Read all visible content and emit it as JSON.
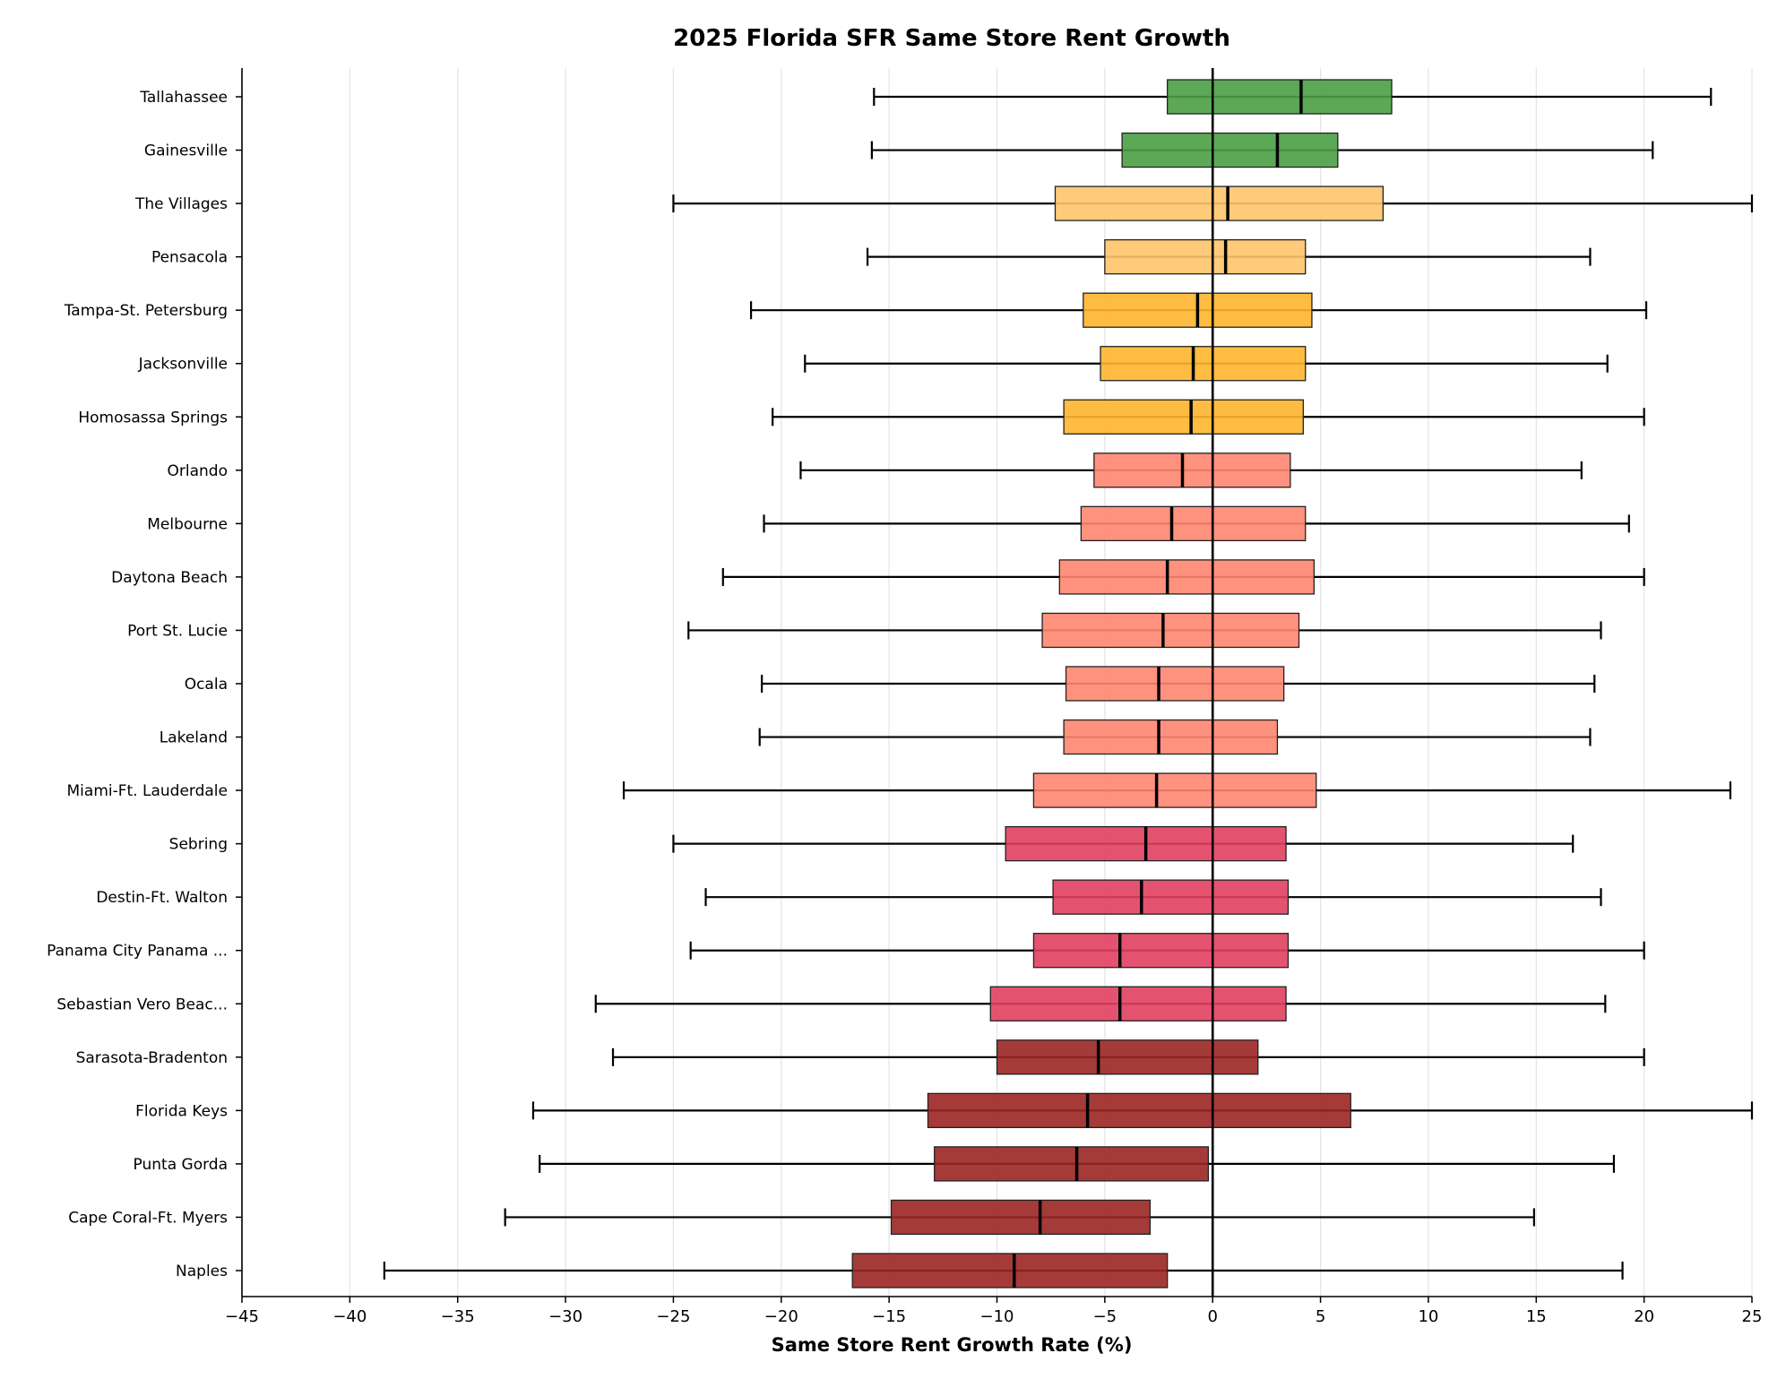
{
  "chart_data": {
    "type": "box",
    "orientation": "horizontal",
    "title": "2025 Florida SFR Same Store Rent Growth",
    "xlabel": "Same Store Rent Growth Rate (%)",
    "ylabel": "",
    "xlim": [
      -45,
      25
    ],
    "xticks": [
      -45,
      -40,
      -35,
      -30,
      -25,
      -20,
      -15,
      -10,
      -5,
      0,
      5,
      10,
      15,
      20,
      25
    ],
    "xtick_labels": [
      "−45",
      "−40",
      "−35",
      "−30",
      "−25",
      "−20",
      "−15",
      "−10",
      "−5",
      "0",
      "5",
      "10",
      "15",
      "20",
      "25"
    ],
    "grid": "vertical",
    "reference_line": 0,
    "categories": [
      {
        "name": "Tallahassee",
        "whisker_low": -15.7,
        "q1": -2.1,
        "median": 4.1,
        "q3": 8.3,
        "whisker_high": 23.1,
        "color": "#4a9e45"
      },
      {
        "name": "Gainesville",
        "whisker_low": -15.8,
        "q1": -4.2,
        "median": 3.0,
        "q3": 5.8,
        "whisker_high": 20.4,
        "color": "#4a9e45"
      },
      {
        "name": "The Villages",
        "whisker_low": -25.0,
        "q1": -7.3,
        "median": 0.7,
        "q3": 7.9,
        "whisker_high": 25.0,
        "color": "#ffc46c"
      },
      {
        "name": "Pensacola",
        "whisker_low": -16.0,
        "q1": -5.0,
        "median": 0.6,
        "q3": 4.3,
        "whisker_high": 17.5,
        "color": "#ffc46c"
      },
      {
        "name": "Tampa-St. Petersburg",
        "whisker_low": -21.4,
        "q1": -6.0,
        "median": -0.7,
        "q3": 4.6,
        "whisker_high": 20.1,
        "color": "#ffb52e"
      },
      {
        "name": "Jacksonville",
        "whisker_low": -18.9,
        "q1": -5.2,
        "median": -0.9,
        "q3": 4.3,
        "whisker_high": 18.3,
        "color": "#ffb52e"
      },
      {
        "name": "Homosassa Springs",
        "whisker_low": -20.4,
        "q1": -6.9,
        "median": -1.0,
        "q3": 4.2,
        "whisker_high": 20.0,
        "color": "#ffb52e"
      },
      {
        "name": "Orlando",
        "whisker_low": -19.1,
        "q1": -5.5,
        "median": -1.4,
        "q3": 3.6,
        "whisker_high": 17.1,
        "color": "#ff8670"
      },
      {
        "name": "Melbourne",
        "whisker_low": -20.8,
        "q1": -6.1,
        "median": -1.9,
        "q3": 4.3,
        "whisker_high": 19.3,
        "color": "#ff8670"
      },
      {
        "name": "Daytona Beach",
        "whisker_low": -22.7,
        "q1": -7.1,
        "median": -2.1,
        "q3": 4.7,
        "whisker_high": 20.0,
        "color": "#ff8670"
      },
      {
        "name": "Port St. Lucie",
        "whisker_low": -24.3,
        "q1": -7.9,
        "median": -2.3,
        "q3": 4.0,
        "whisker_high": 18.0,
        "color": "#ff8670"
      },
      {
        "name": "Ocala",
        "whisker_low": -20.9,
        "q1": -6.8,
        "median": -2.5,
        "q3": 3.3,
        "whisker_high": 17.7,
        "color": "#ff8670"
      },
      {
        "name": "Lakeland",
        "whisker_low": -21.0,
        "q1": -6.9,
        "median": -2.5,
        "q3": 3.0,
        "whisker_high": 17.5,
        "color": "#ff8670"
      },
      {
        "name": "Miami-Ft. Lauderdale",
        "whisker_low": -27.3,
        "q1": -8.3,
        "median": -2.6,
        "q3": 4.8,
        "whisker_high": 24.0,
        "color": "#ff8670"
      },
      {
        "name": "Sebring",
        "whisker_low": -25.0,
        "q1": -9.6,
        "median": -3.1,
        "q3": 3.4,
        "whisker_high": 16.7,
        "color": "#e0405f"
      },
      {
        "name": "Destin-Ft. Walton",
        "whisker_low": -23.5,
        "q1": -7.4,
        "median": -3.3,
        "q3": 3.5,
        "whisker_high": 18.0,
        "color": "#e0405f"
      },
      {
        "name": "Panama City Panama ...",
        "whisker_low": -24.2,
        "q1": -8.3,
        "median": -4.3,
        "q3": 3.5,
        "whisker_high": 20.0,
        "color": "#e0405f"
      },
      {
        "name": "Sebastian Vero Beac...",
        "whisker_low": -28.6,
        "q1": -10.3,
        "median": -4.3,
        "q3": 3.4,
        "whisker_high": 18.2,
        "color": "#e0405f"
      },
      {
        "name": "Sarasota-Bradenton",
        "whisker_low": -27.8,
        "q1": -10.0,
        "median": -5.3,
        "q3": 2.1,
        "whisker_high": 20.0,
        "color": "#9b2623"
      },
      {
        "name": "Florida Keys",
        "whisker_low": -31.5,
        "q1": -13.2,
        "median": -5.8,
        "q3": 6.4,
        "whisker_high": 25.0,
        "color": "#9b2623"
      },
      {
        "name": "Punta Gorda",
        "whisker_low": -31.2,
        "q1": -12.9,
        "median": -6.3,
        "q3": -0.2,
        "whisker_high": 18.6,
        "color": "#9b2623"
      },
      {
        "name": "Cape Coral-Ft. Myers",
        "whisker_low": -32.8,
        "q1": -14.9,
        "median": -8.0,
        "q3": -2.9,
        "whisker_high": 14.9,
        "color": "#9b2623"
      },
      {
        "name": "Naples",
        "whisker_low": -38.4,
        "q1": -16.7,
        "median": -9.2,
        "q3": -2.1,
        "whisker_high": 19.0,
        "color": "#9b2623"
      }
    ]
  }
}
